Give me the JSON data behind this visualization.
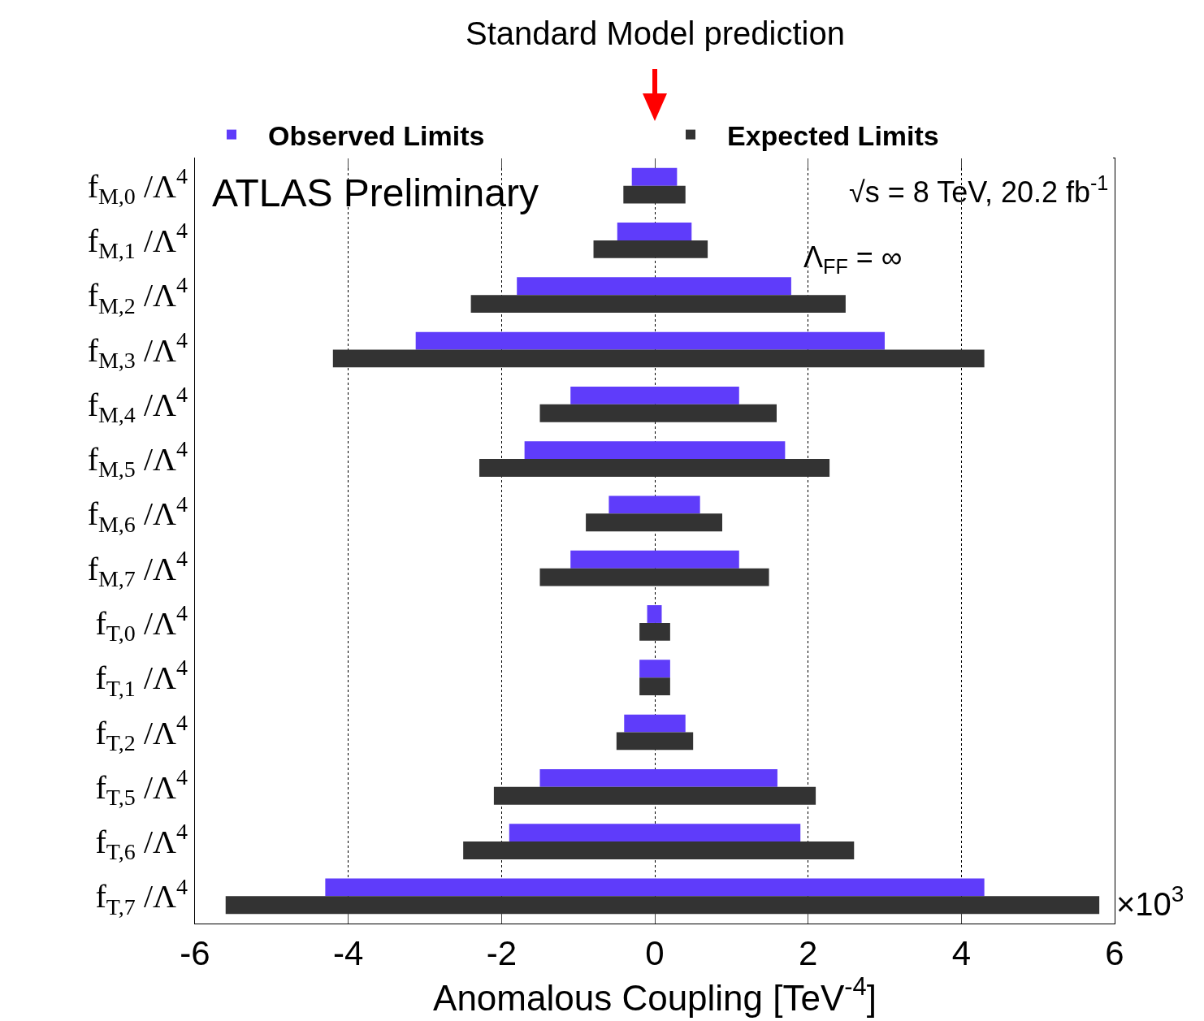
{
  "chart_data": {
    "type": "bar",
    "orientation": "horizontal",
    "categories": [
      "f$_{M,0}$ /Λ$^{4}$",
      "f$_{M,1}$ /Λ$^{4}$",
      "f$_{M,2}$ /Λ$^{4}$",
      "f$_{M,3}$ /Λ$^{4}$",
      "f$_{M,4}$ /Λ$^{4}$",
      "f$_{M,5}$ /Λ$^{4}$",
      "f$_{M,6}$ /Λ$^{4}$",
      "f$_{M,7}$ /Λ$^{4}$",
      "f$_{T,0}$ /Λ$^{4}$",
      "f$_{T,1}$ /Λ$^{4}$",
      "f$_{T,2}$ /Λ$^{4}$",
      "f$_{T,5}$ /Λ$^{4}$",
      "f$_{T,6}$ /Λ$^{4}$",
      "f$_{T,7}$ /Λ$^{4}$"
    ],
    "series": [
      {
        "name": "Observed Limits",
        "color": "#5f3cfa",
        "base": [
          -0.3,
          -0.49,
          -1.8,
          -3.12,
          -1.1,
          -1.7,
          -0.6,
          -1.1,
          -0.1,
          -0.2,
          -0.4,
          -1.5,
          -1.9,
          -4.3
        ],
        "values": [
          0.59,
          0.97,
          3.58,
          6.12,
          2.2,
          3.4,
          1.19,
          2.2,
          0.19,
          0.4,
          0.8,
          3.1,
          3.8,
          8.6
        ]
      },
      {
        "name": "Expected Limits",
        "color": "#333333",
        "base": [
          -0.41,
          -0.8,
          -2.4,
          -4.2,
          -1.5,
          -2.29,
          -0.9,
          -1.5,
          -0.2,
          -0.2,
          -0.5,
          -2.1,
          -2.5,
          -5.6
        ],
        "values": [
          0.81,
          1.49,
          4.89,
          8.5,
          3.09,
          4.57,
          1.78,
          2.99,
          0.4,
          0.4,
          1.0,
          4.2,
          5.1,
          11.4
        ]
      }
    ],
    "xlim": [
      -6,
      6
    ],
    "xticks": [
      -6,
      -4,
      -2,
      0,
      2,
      4,
      6
    ],
    "xlabel": "Anomalous Coupling [TeV$^{-4}$]",
    "annotations": [
      "Standard Model prediction",
      "ATLAS Preliminary",
      "√s = 8 TeV, 20.2 fb$^{-1}$",
      "Λ$_{FF}$ = ∞",
      "×10$^{3}$"
    ],
    "grid": "x",
    "legend": "top"
  }
}
